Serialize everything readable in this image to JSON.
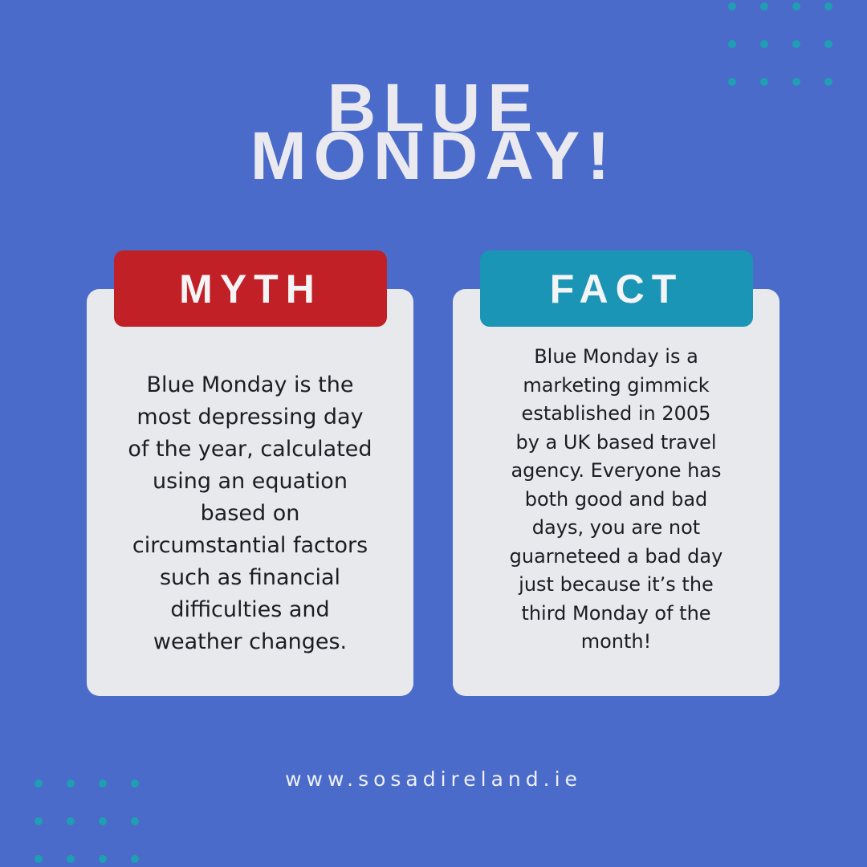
{
  "title_lines": [
    "BLUE",
    "MONDAY!"
  ],
  "myth": {
    "label": "MYTH",
    "body_lines": [
      "Blue Monday is the",
      "most depressing day",
      "of the year, calculated",
      "using an equation",
      "based on",
      "circumstantial factors",
      "such as financial",
      "difficulties and",
      "weather changes."
    ]
  },
  "fact": {
    "label": "FACT",
    "body_lines": [
      "Blue Monday is a",
      "marketing gimmick",
      "established in 2005",
      "by a UK based travel",
      "agency. Everyone has",
      "both good and bad",
      "days, you are not",
      "guarneteed a bad day",
      "just because it’s the",
      "third Monday of the",
      "month!"
    ]
  },
  "footer": "www.sosadireland.ie"
}
